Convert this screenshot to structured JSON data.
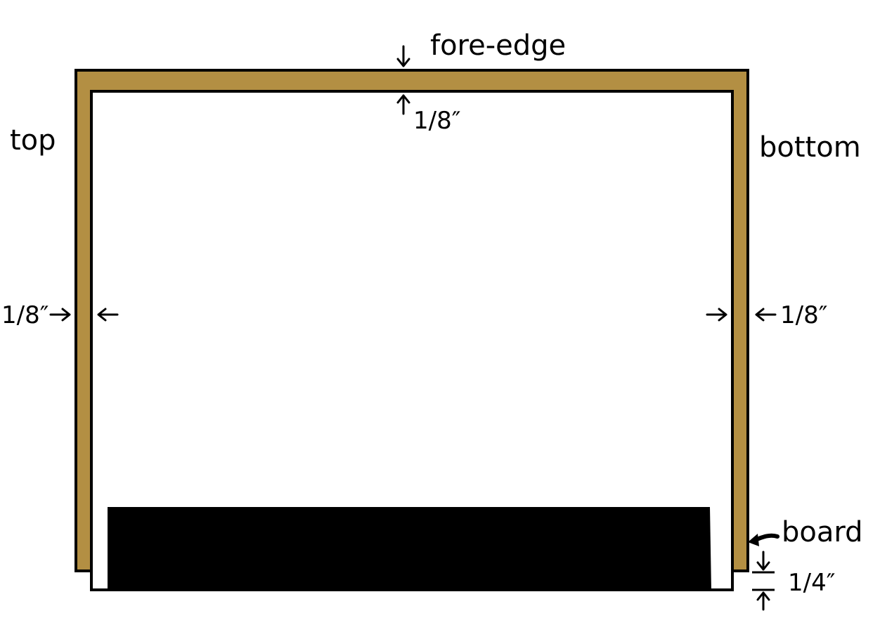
{
  "colors": {
    "board_outline": "#000000",
    "board_fill": "#b38f43",
    "text_block_fill": "#ffffff",
    "spine_block_fill": "#000000",
    "background": "#ffffff"
  },
  "labels": {
    "fore_edge": "fore-edge",
    "fore_edge_measure": "1/8″",
    "top": "top",
    "bottom": "bottom",
    "left_measure": "1/8″",
    "right_measure": "1/8″",
    "board": "board",
    "bottom_measure": "1/4″"
  }
}
